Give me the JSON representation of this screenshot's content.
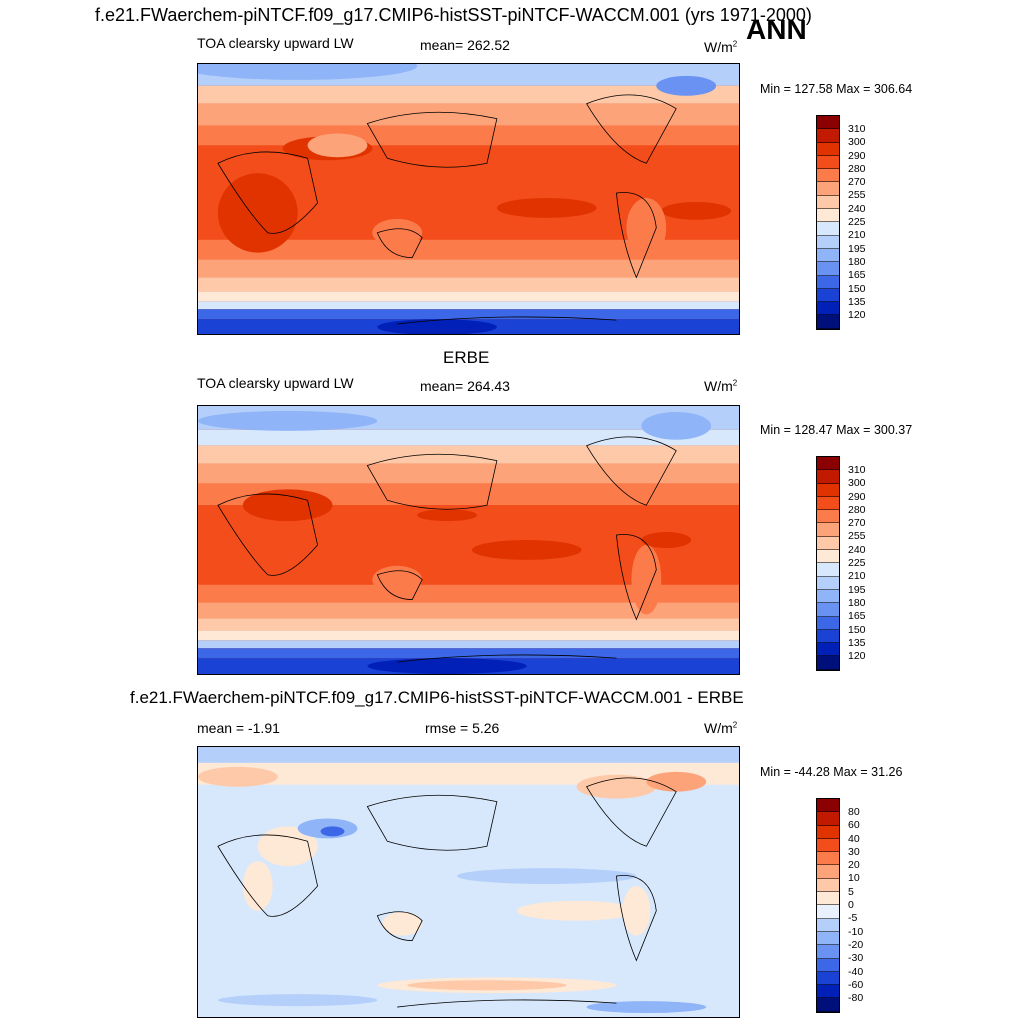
{
  "header": {
    "title": "f.e21.FWaerchem-piNTCF.f09_g17.CMIP6-histSST-piNTCF-WACCM.001 (yrs 1971-2000)",
    "season": "ANN"
  },
  "panels": [
    {
      "variable": "TOA clearsky upward LW",
      "mean_text": "mean= 262.52",
      "units": "W/m",
      "units_sup": "2",
      "minmax": "Min = 127.58 Max = 306.64"
    },
    {
      "section_title": "ERBE",
      "variable": "TOA clearsky upward LW",
      "mean_text": "mean= 264.43",
      "units": "W/m",
      "units_sup": "2",
      "minmax": "Min = 128.47 Max = 300.37"
    },
    {
      "section_title": "f.e21.FWaerchem-piNTCF.f09_g17.CMIP6-histSST-piNTCF-WACCM.001 - ERBE",
      "mean_text": "mean =  -1.91",
      "rmse_text": "rmse =   5.26",
      "units": "W/m",
      "units_sup": "2",
      "minmax": "Min = -44.28 Max =  31.26"
    }
  ],
  "colorbar_abs": {
    "levels": [
      "310",
      "300",
      "290",
      "280",
      "270",
      "255",
      "240",
      "225",
      "210",
      "195",
      "180",
      "165",
      "150",
      "135",
      "120"
    ],
    "colors": [
      "#8b0000",
      "#c21a00",
      "#e03300",
      "#f24d1a",
      "#fb7b4b",
      "#fca37a",
      "#fdc9a8",
      "#fee8d6",
      "#d7e8fc",
      "#b4d0fa",
      "#8fb4f7",
      "#6a92f2",
      "#3c68e8",
      "#1a42d4",
      "#0020b8",
      "#00107a"
    ]
  },
  "colorbar_diff": {
    "levels": [
      "80",
      "60",
      "40",
      "30",
      "20",
      "10",
      "5",
      "0",
      "-5",
      "-10",
      "-20",
      "-30",
      "-40",
      "-60",
      "-80"
    ],
    "colors": [
      "#8b0000",
      "#c21a00",
      "#e03300",
      "#f24d1a",
      "#fb7b4b",
      "#fca37a",
      "#fdc9a8",
      "#fee8d6",
      "#e8f1fd",
      "#b4d0fa",
      "#8fb4f7",
      "#6a92f2",
      "#3c68e8",
      "#1a42d4",
      "#0020b8",
      "#00107a"
    ]
  }
}
